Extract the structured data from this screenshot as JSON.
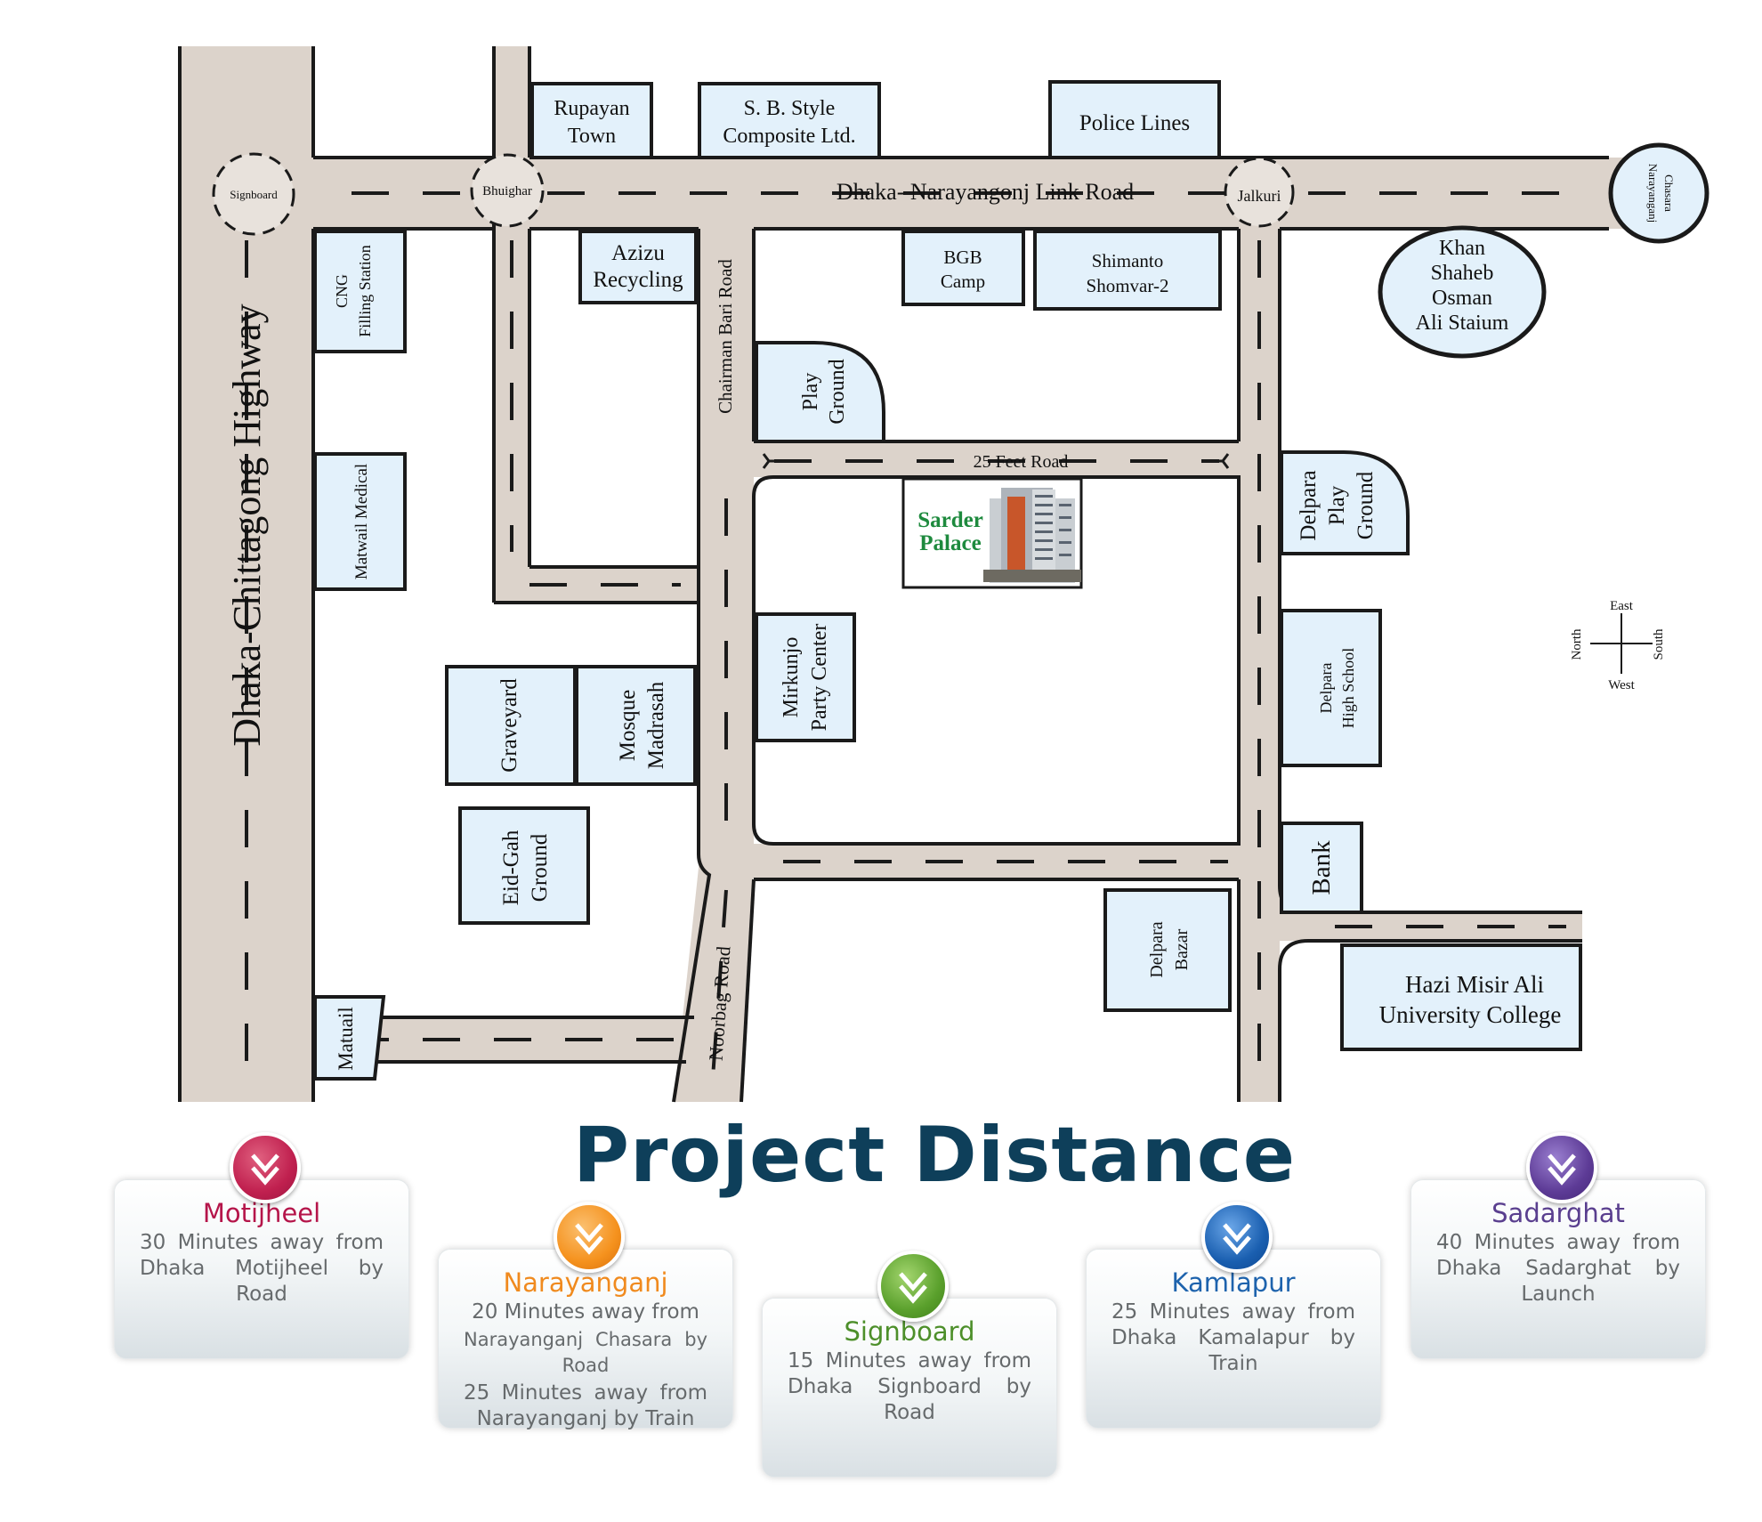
{
  "map": {
    "roads": {
      "highway": "Dhaka-Chittagong Highway",
      "link_road": "Dhaka- Narayangonj Link Road",
      "chairman_bari": "Chairman Bari Road",
      "feet_road": "25 Feet Road",
      "noorbag": "Noorbag Road"
    },
    "junctions": {
      "signboard": "Signboard",
      "bhuighar": "Bhuighar",
      "jalkuri": "Jalkuri",
      "chasara_1": "Chasara",
      "chasara_2": "Narayanganj"
    },
    "places": {
      "rupayan_1": "Rupayan",
      "rupayan_2": "Town",
      "sb_1": "S. B. Style",
      "sb_2": "Composite Ltd.",
      "police": "Police Lines",
      "khan_1": "Khan",
      "khan_2": "Shaheb",
      "khan_3": "Osman",
      "khan_4": "Ali Staium",
      "cng_1": "CNG",
      "cng_2": "Filling Station",
      "azizu_1": "Azizu",
      "azizu_2": "Recycling",
      "bgb_1": "BGB",
      "bgb_2": "Camp",
      "shimanto_1": "Shimanto",
      "shimanto_2": "Shomvar-2",
      "play_1": "Play",
      "play_2": "Ground",
      "delpara_play_1": "Delpara",
      "delpara_play_2": "Play",
      "delpara_play_3": "Ground",
      "matwail_medical": "Matwail Medical",
      "sarder_1": "Sarder",
      "sarder_2": "Palace",
      "graveyard": "Graveyard",
      "mosque_1": "Mosque",
      "mosque_2": "Madrasah",
      "mirkunjo_1": "Mirkunjo",
      "mirkunjo_2": "Party Center",
      "delpara_hs_1": "Delpara",
      "delpara_hs_2": "High School",
      "eidgah_1": "Eid-Gah",
      "eidgah_2": "Ground",
      "bank": "Bank",
      "delpara_bazar_1": "Delpara",
      "delpara_bazar_2": "Bazar",
      "hazi_1": "Hazi Misir Ali",
      "hazi_2": "University College",
      "matuail": "Matuail"
    },
    "compass": {
      "east": "East",
      "west": "West",
      "north": "North",
      "south": "South"
    },
    "colors": {
      "road": "#dcd3cb",
      "box": "#e3f1fb",
      "stroke": "#1a1a1a",
      "sarder": "#1e8a3e"
    }
  },
  "title": "Project Distance",
  "cards": [
    {
      "title": "Motijheel",
      "lines": [
        "30 Minutes away from Dhaka Motijheel by Road"
      ],
      "color": "#b5154a",
      "badge_color": "#c0204f",
      "icon": "double-chevron-down-icon"
    },
    {
      "title": "Narayanganj",
      "lines": [
        "20 Minutes away from",
        "Narayanganj Chasara by Road",
        "25 Minutes away from Narayanganj by Train"
      ],
      "color": "#f08a1e",
      "badge_color": "#f5921e",
      "icon": "double-chevron-down-icon"
    },
    {
      "title": "Signboard",
      "lines": [
        "15 Minutes away from Dhaka Signboard by Road"
      ],
      "color": "#4d8f2a",
      "badge_color": "#5aa02c",
      "icon": "double-chevron-down-icon"
    },
    {
      "title": "Kamlapur",
      "lines": [
        "25 Minutes away from Dhaka Kamalapur by Train"
      ],
      "color": "#1e63ad",
      "badge_color": "#1a5fb0",
      "icon": "double-chevron-down-icon"
    },
    {
      "title": "Sadarghat",
      "lines": [
        "40 Minutes away from Dhaka Sadarghat by Launch"
      ],
      "color": "#5a3f8f",
      "badge_color": "#5d3b96",
      "icon": "double-chevron-down-icon"
    }
  ]
}
